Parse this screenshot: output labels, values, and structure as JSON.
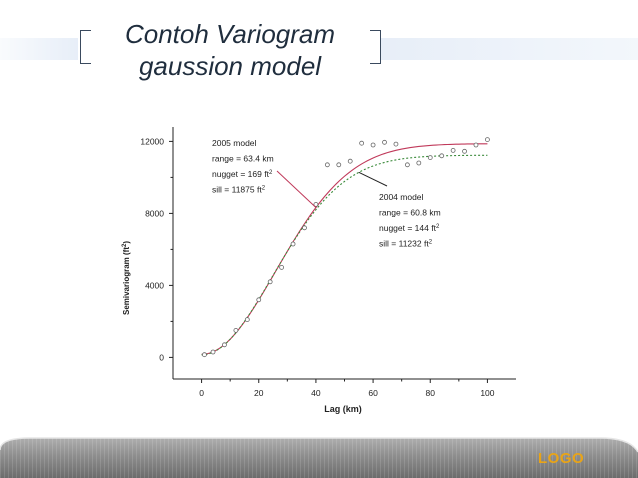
{
  "slide": {
    "title_line1": "Contoh Variogram",
    "title_line2": "gaussion model",
    "logo": "LOGO"
  },
  "colors": {
    "model_2005": "#c0395a",
    "model_2004": "#3a8a3a",
    "points": "#666666",
    "logo": "#e9a417"
  },
  "chart_data": {
    "type": "scatter",
    "xlabel": "Lag (km)",
    "ylabel": "Semivariogram (ft²)",
    "xlim": [
      -10,
      110
    ],
    "ylim": [
      -1200,
      12800
    ],
    "x_ticks": [
      0,
      20,
      40,
      60,
      80,
      100
    ],
    "y_ticks": [
      0,
      4000,
      8000,
      12000
    ],
    "grid": false,
    "observed_points": [
      {
        "x": 1,
        "y": 150
      },
      {
        "x": 4,
        "y": 300
      },
      {
        "x": 8,
        "y": 700
      },
      {
        "x": 12,
        "y": 1500
      },
      {
        "x": 16,
        "y": 2100
      },
      {
        "x": 20,
        "y": 3200
      },
      {
        "x": 24,
        "y": 4200
      },
      {
        "x": 28,
        "y": 5000
      },
      {
        "x": 32,
        "y": 6300
      },
      {
        "x": 36,
        "y": 7200
      },
      {
        "x": 40,
        "y": 8500
      },
      {
        "x": 44,
        "y": 10700
      },
      {
        "x": 48,
        "y": 10700
      },
      {
        "x": 52,
        "y": 10900
      },
      {
        "x": 56,
        "y": 11900
      },
      {
        "x": 60,
        "y": 11800
      },
      {
        "x": 64,
        "y": 11950
      },
      {
        "x": 68,
        "y": 11850
      },
      {
        "x": 72,
        "y": 10700
      },
      {
        "x": 76,
        "y": 10800
      },
      {
        "x": 80,
        "y": 11100
      },
      {
        "x": 84,
        "y": 11200
      },
      {
        "x": 88,
        "y": 11500
      },
      {
        "x": 92,
        "y": 11450
      },
      {
        "x": 96,
        "y": 11800
      },
      {
        "x": 100,
        "y": 12100
      }
    ],
    "series": [
      {
        "name": "2005 model",
        "model": "gaussian",
        "style": "solid",
        "range": 63.4,
        "nugget": 169,
        "sill": 11875
      },
      {
        "name": "2004 model",
        "model": "gaussian",
        "style": "dotted",
        "range": 60.8,
        "nugget": 144,
        "sill": 11232
      }
    ],
    "annotations": [
      {
        "id": "a2005",
        "lines": [
          "2005 model",
          "range = 63.4 km",
          "nugget = 169 ft",
          "sill = 11875 ft"
        ],
        "superscripts": [
          "",
          "",
          "2",
          "2"
        ]
      },
      {
        "id": "a2004",
        "lines": [
          "2004 model",
          "range = 60.8 km",
          "nugget = 144 ft",
          "sill = 11232 ft"
        ],
        "superscripts": [
          "",
          "",
          "2",
          "2"
        ]
      }
    ]
  }
}
